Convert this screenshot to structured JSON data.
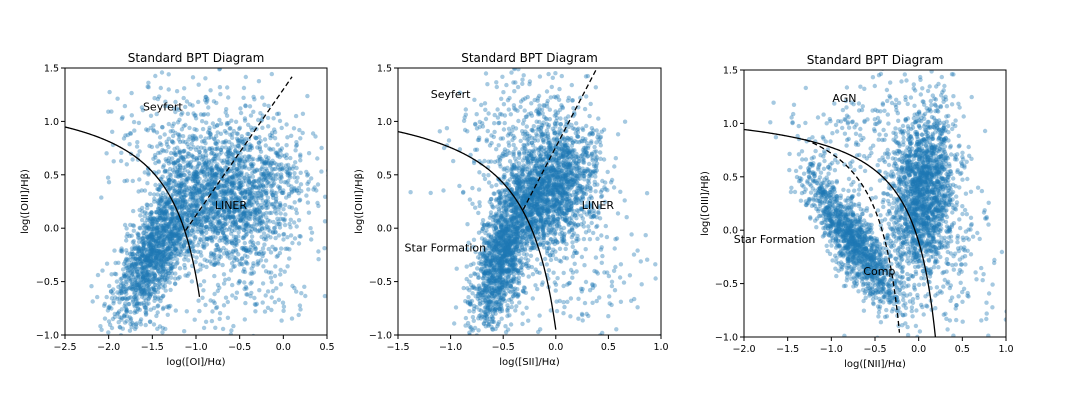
{
  "chart_data": [
    {
      "type": "scatter",
      "title": "Standard BPT Diagram",
      "xlabel": "log([OI]/Hα)",
      "ylabel": "log([OIII]/Hβ)",
      "xlim": [
        -2.5,
        0.5
      ],
      "ylim": [
        -1.0,
        1.5
      ],
      "xticks": [
        -2.5,
        -2.0,
        -1.5,
        -1.0,
        -0.5,
        0.0,
        0.5
      ],
      "xtick_labels": [
        "−2.5",
        "−2.0",
        "−1.5",
        "−1.0",
        "−0.5",
        "0.0",
        "0.5"
      ],
      "yticks": [
        -1.0,
        -0.5,
        0.0,
        0.5,
        1.0,
        1.5
      ],
      "ytick_labels": [
        "−1.0",
        "−0.5",
        "0.0",
        "0.5",
        "1.0",
        "1.5"
      ],
      "point_color": "#1f77b4",
      "lines": [
        {
          "style": "solid",
          "equation": "y = 0.73/(x+0.59) + 1.33",
          "x_range": [
            -2.5,
            -0.96
          ]
        },
        {
          "style": "dashed",
          "equation": "y = 1.18x + 1.30",
          "x_range": [
            -1.12,
            0.1
          ]
        }
      ],
      "annotations": [
        {
          "text": "Seyfert",
          "x": -1.38,
          "y": 1.1
        },
        {
          "text": "LINER",
          "x": -0.6,
          "y": 0.18
        }
      ],
      "clusters": [
        {
          "center": [
            -1.45,
            -0.2
          ],
          "spread": [
            0.25,
            0.35
          ],
          "correlation": 0.7,
          "count": 1400
        },
        {
          "center": [
            -0.6,
            0.3
          ],
          "spread": [
            0.4,
            0.3
          ],
          "correlation": 0.15,
          "count": 1600
        },
        {
          "center": [
            -1.1,
            0.8
          ],
          "spread": [
            0.45,
            0.3
          ],
          "correlation": 0.0,
          "count": 350
        },
        {
          "center": [
            -0.4,
            -0.4
          ],
          "spread": [
            0.5,
            0.35
          ],
          "correlation": 0.0,
          "count": 250
        }
      ]
    },
    {
      "type": "scatter",
      "title": "Standard BPT Diagram",
      "xlabel": "log([SII]/Hα)",
      "ylabel": "log([OIII]/Hβ)",
      "xlim": [
        -1.5,
        1.0
      ],
      "ylim": [
        -1.0,
        1.5
      ],
      "xticks": [
        -1.5,
        -1.0,
        -0.5,
        0.0,
        0.5,
        1.0
      ],
      "xtick_labels": [
        "−1.5",
        "−1.0",
        "−0.5",
        "0.0",
        "0.5",
        "1.0"
      ],
      "yticks": [
        -1.0,
        -0.5,
        0.0,
        0.5,
        1.0,
        1.5
      ],
      "ytick_labels": [
        "−1.0",
        "−0.5",
        "0.0",
        "0.5",
        "1.0",
        "1.5"
      ],
      "point_color": "#1f77b4",
      "lines": [
        {
          "style": "solid",
          "equation": "y = 0.72/(x-0.32) + 1.30",
          "x_range": [
            -1.5,
            0.0
          ]
        },
        {
          "style": "dashed",
          "equation": "y = 1.89x + 0.76",
          "x_range": [
            -0.31,
            0.4
          ]
        }
      ],
      "annotations": [
        {
          "text": "Seyfert",
          "x": -1.0,
          "y": 1.22
        },
        {
          "text": "LINER",
          "x": 0.4,
          "y": 0.18
        },
        {
          "text": "Star Formation",
          "x": -1.05,
          "y": -0.22
        }
      ],
      "clusters": [
        {
          "center": [
            -0.5,
            -0.25
          ],
          "spread": [
            0.15,
            0.38
          ],
          "correlation": 0.65,
          "count": 1400
        },
        {
          "center": [
            -0.05,
            0.35
          ],
          "spread": [
            0.22,
            0.3
          ],
          "correlation": 0.3,
          "count": 1600
        },
        {
          "center": [
            -0.3,
            0.85
          ],
          "spread": [
            0.35,
            0.35
          ],
          "correlation": 0.0,
          "count": 350
        },
        {
          "center": [
            0.1,
            -0.3
          ],
          "spread": [
            0.4,
            0.4
          ],
          "correlation": 0.0,
          "count": 250
        }
      ]
    },
    {
      "type": "scatter",
      "title": "Standard BPT Diagram",
      "xlabel": "log([NII]/Hα)",
      "ylabel": "log([OIII]/Hβ)",
      "xlim": [
        -2.0,
        1.0
      ],
      "ylim": [
        -1.0,
        1.5
      ],
      "xticks": [
        -2.0,
        -1.5,
        -1.0,
        -0.5,
        0.0,
        0.5,
        1.0
      ],
      "xtick_labels": [
        "−2.0",
        "−1.5",
        "−1.0",
        "−0.5",
        "0.0",
        "0.5",
        "1.0"
      ],
      "yticks": [
        -1.0,
        -0.5,
        0.0,
        0.5,
        1.0,
        1.5
      ],
      "ytick_labels": [
        "−1.0",
        "−0.5",
        "0.0",
        "0.5",
        "1.0",
        "1.5"
      ],
      "point_color": "#1f77b4",
      "lines": [
        {
          "style": "solid",
          "equation": "y = 0.61/(x-0.47) + 1.19",
          "x_range": [
            -2.0,
            0.2
          ]
        },
        {
          "style": "dashed",
          "equation": "y = 0.61/(x-0.05) + 1.3",
          "x_range": [
            -1.3,
            -0.22
          ]
        }
      ],
      "annotations": [
        {
          "text": "AGN",
          "x": -0.85,
          "y": 1.2
        },
        {
          "text": "Star Formation",
          "x": -1.65,
          "y": -0.12
        },
        {
          "text": "Comp",
          "x": -0.45,
          "y": -0.42
        }
      ],
      "clusters": [
        {
          "center": [
            -0.75,
            -0.1
          ],
          "spread": [
            0.28,
            0.35
          ],
          "correlation": -0.85,
          "count": 1300
        },
        {
          "center": [
            0.05,
            0.35
          ],
          "spread": [
            0.18,
            0.38
          ],
          "correlation": 0.2,
          "count": 1700
        },
        {
          "center": [
            -0.5,
            0.9
          ],
          "spread": [
            0.45,
            0.3
          ],
          "correlation": 0.0,
          "count": 250
        },
        {
          "center": [
            0.3,
            -0.3
          ],
          "spread": [
            0.35,
            0.35
          ],
          "correlation": 0.0,
          "count": 200
        }
      ]
    }
  ]
}
